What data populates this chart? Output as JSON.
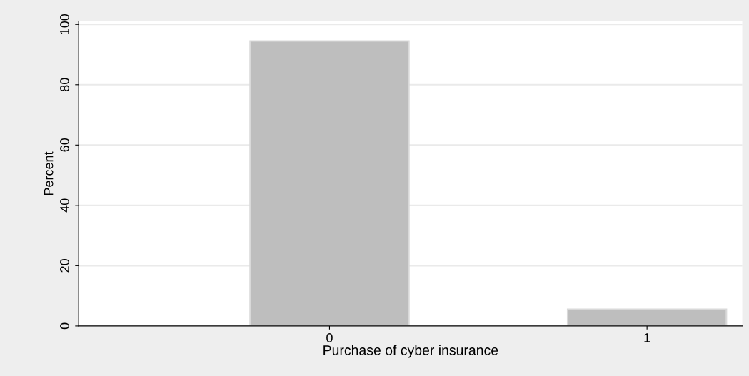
{
  "chart_data": {
    "type": "bar",
    "xlabel": "Purchase of cyber insurance",
    "ylabel": "Percent",
    "x": [
      0,
      1
    ],
    "values": [
      94.5,
      5.5
    ],
    "color": "#bebebe",
    "xlim": [
      -0.79,
      1.3
    ],
    "xticks": [
      0,
      1
    ],
    "ylim": [
      0,
      101
    ],
    "yticks": [
      0,
      20,
      40,
      60,
      80,
      100
    ],
    "grid": "y",
    "legend": false
  }
}
